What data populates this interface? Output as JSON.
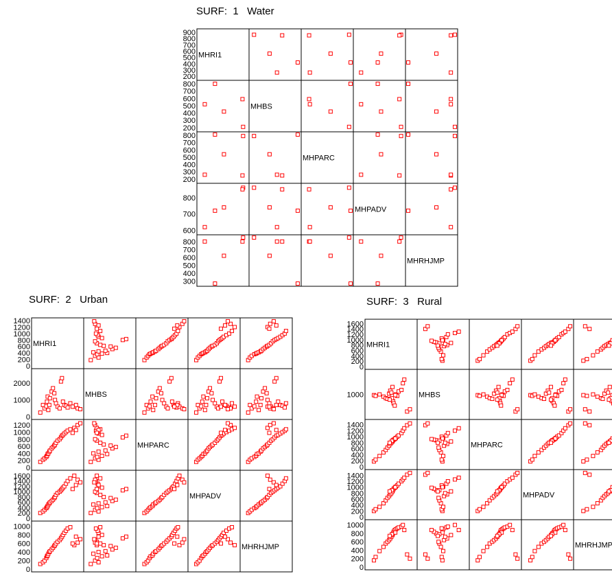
{
  "chart_data": [
    {
      "type": "scatter",
      "title": "SURF:  1   Water",
      "variables": [
        "MHRI1",
        "MHBS",
        "MHPARC",
        "MHPADV",
        "MHRHJMP"
      ],
      "ticks": [
        [
          "900",
          "800",
          "700",
          "600",
          "500",
          "400",
          "300",
          "200"
        ],
        [
          "800",
          "700",
          "600",
          "500",
          "400",
          "300",
          "200"
        ],
        [
          "800",
          "700",
          "600",
          "500",
          "400",
          "300",
          "200"
        ],
        [
          "800",
          "700",
          "600"
        ],
        [
          "800",
          "700",
          "600",
          "500",
          "400",
          "300"
        ]
      ],
      "ranges": [
        [
          180,
          910
        ],
        [
          180,
          810
        ],
        [
          180,
          810
        ],
        [
          590,
          870
        ],
        [
          270,
          850
        ]
      ],
      "data": {
        "MHRI1": [
          860,
          850,
          420,
          560,
          260
        ],
        "MHBS": [
          210,
          590,
          800,
          420,
          520
        ],
        "MHPARC": [
          790,
          250,
          810,
          540,
          260
        ],
        "MHPADV": [
          860,
          850,
          720,
          740,
          620
        ],
        "MHRHJMP": [
          850,
          800,
          270,
          620,
          800
        ]
      },
      "grid": false
    },
    {
      "type": "scatter",
      "title": "SURF:  2   Urban",
      "variables": [
        "MHRI1",
        "MHBS",
        "MHPARC",
        "MHPADV",
        "MHRHJMP"
      ],
      "ticks": [
        [
          "1400",
          "1200",
          "1000",
          "800",
          "600",
          "400",
          "200",
          "0"
        ],
        [
          "2000",
          "1000",
          "0"
        ],
        [
          "1200",
          "1000",
          "800",
          "600",
          "400",
          "200",
          "0"
        ],
        [
          "1600",
          "1400",
          "1200",
          "1000",
          "800",
          "600",
          "400",
          "200",
          "0"
        ],
        [
          "1000",
          "800",
          "600",
          "400",
          "200",
          "0"
        ]
      ],
      "ranges": [
        [
          0,
          1400
        ],
        [
          0,
          2700
        ],
        [
          0,
          1280
        ],
        [
          0,
          1700
        ],
        [
          0,
          1060
        ]
      ],
      "data": {
        "MHRI1": [
          180,
          260,
          310,
          360,
          380,
          400,
          420,
          450,
          470,
          520,
          560,
          600,
          620,
          650,
          700,
          760,
          800,
          830,
          860,
          900,
          950,
          1000,
          1080,
          1200,
          1300,
          1380,
          1250,
          1150
        ],
        "MHBS": [
          250,
          700,
          500,
          620,
          900,
          1200,
          400,
          700,
          1100,
          1500,
          1700,
          1400,
          1000,
          800,
          600,
          500,
          2100,
          2300,
          900,
          700,
          650,
          550,
          800,
          600,
          500,
          450,
          700,
          600
        ],
        "MHPARC": [
          160,
          220,
          260,
          300,
          330,
          380,
          400,
          450,
          480,
          540,
          580,
          620,
          650,
          700,
          760,
          800,
          850,
          900,
          920,
          960,
          1000,
          1040,
          1080,
          1120,
          1200,
          1250,
          1060,
          980
        ],
        "MHPADV": [
          200,
          260,
          320,
          380,
          420,
          460,
          520,
          560,
          600,
          650,
          700,
          760,
          800,
          880,
          950,
          1000,
          1050,
          1100,
          1150,
          1200,
          1300,
          1400,
          1500,
          1600,
          1450,
          1350,
          1250,
          1100
        ],
        "MHRHJMP": [
          120,
          160,
          200,
          260,
          300,
          320,
          360,
          400,
          420,
          460,
          500,
          540,
          560,
          600,
          640,
          680,
          720,
          760,
          800,
          850,
          900,
          950,
          980,
          560,
          620,
          700,
          760,
          600
        ]
      },
      "grid": false
    },
    {
      "type": "scatter",
      "title": "SURF:  3   Rural",
      "variables": [
        "MHRI1",
        "MHBS",
        "MHPARC",
        "MHPADV",
        "MHRHJMP"
      ],
      "ticks": [
        [
          "1600",
          "1400",
          "1200",
          "1000",
          "800",
          "600",
          "400",
          "200",
          "0"
        ],
        [
          "1000"
        ],
        [
          "1400",
          "1200",
          "1000",
          "800",
          "600",
          "400",
          "200",
          "0"
        ],
        [
          "1400",
          "1200",
          "1000",
          "800",
          "600",
          "400",
          "200",
          "0"
        ],
        [
          "1000",
          "800",
          "600",
          "400",
          "200",
          "0"
        ]
      ],
      "ranges": [
        [
          0,
          1660
        ],
        [
          400,
          1600
        ],
        [
          0,
          1480
        ],
        [
          0,
          1500
        ],
        [
          0,
          1060
        ]
      ],
      "data": {
        "MHRI1": [
          220,
          280,
          420,
          560,
          640,
          700,
          760,
          800,
          840,
          880,
          900,
          920,
          960,
          1000,
          1050,
          1100,
          1200,
          1250,
          1300,
          1400,
          1500,
          980,
          860,
          780
        ],
        "MHBS": [
          980,
          960,
          1000,
          940,
          900,
          880,
          1020,
          1100,
          1050,
          1200,
          820,
          760,
          700,
          1000,
          960,
          1080,
          1120,
          1300,
          1400,
          540,
          600,
          980,
          900,
          860
        ],
        "MHPARC": [
          180,
          240,
          360,
          480,
          560,
          640,
          700,
          760,
          800,
          840,
          880,
          900,
          920,
          960,
          1000,
          1040,
          1120,
          1200,
          1280,
          1380,
          1440,
          940,
          860,
          800
        ],
        "MHPADV": [
          200,
          260,
          340,
          460,
          560,
          640,
          700,
          760,
          800,
          860,
          900,
          950,
          980,
          1020,
          1060,
          1120,
          1200,
          1260,
          1320,
          1420,
          1480,
          1000,
          900,
          860
        ],
        "MHRHJMP": [
          160,
          240,
          380,
          480,
          560,
          600,
          640,
          680,
          720,
          760,
          800,
          840,
          880,
          900,
          920,
          940,
          960,
          1000,
          880,
          300,
          200,
          820,
          780,
          740
        ]
      },
      "grid": false
    }
  ]
}
